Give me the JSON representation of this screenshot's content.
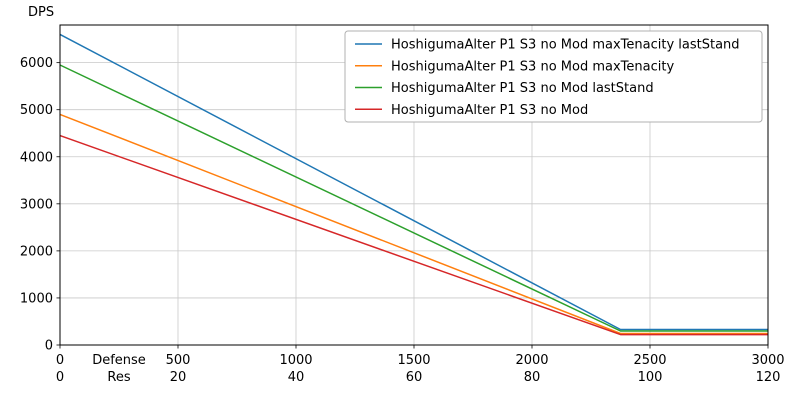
{
  "figure": {
    "background": "#ffffff"
  },
  "chart_data": {
    "type": "line",
    "title": "",
    "ylabel": "DPS",
    "grid": true,
    "legend_position": "upper right",
    "xlim": [
      0,
      3000
    ],
    "ylim": [
      0,
      6800
    ],
    "x_axis": {
      "tick_positions": [
        0,
        500,
        1000,
        1500,
        2000,
        2500,
        3000
      ],
      "rows": [
        {
          "label": "Defense",
          "values": [
            "0",
            "500",
            "1000",
            "1500",
            "2000",
            "2500",
            "3000"
          ]
        },
        {
          "label": "Res",
          "values": [
            "0",
            "20",
            "40",
            "60",
            "80",
            "100",
            "120"
          ]
        }
      ]
    },
    "y_axis": {
      "label": "DPS",
      "ticks": [
        0,
        1000,
        2000,
        3000,
        4000,
        5000,
        6000
      ]
    },
    "series": [
      {
        "name": "HoshigumaAlter P1 S3 no Mod maxTenacity lastStand",
        "color": "#1f77b4",
        "x": [
          0,
          2375,
          3000
        ],
        "y": [
          6600,
          330,
          330
        ]
      },
      {
        "name": "HoshigumaAlter P1 S3 no Mod maxTenacity",
        "color": "#ff7f0e",
        "x": [
          0,
          2375,
          3000
        ],
        "y": [
          4900,
          245,
          245
        ]
      },
      {
        "name": "HoshigumaAlter P1 S3 no Mod lastStand",
        "color": "#2ca02c",
        "x": [
          0,
          2375,
          3000
        ],
        "y": [
          5950,
          297,
          297
        ]
      },
      {
        "name": "HoshigumaAlter P1 S3 no Mod",
        "color": "#d62728",
        "x": [
          0,
          2375,
          3000
        ],
        "y": [
          4450,
          222,
          222
        ]
      }
    ],
    "colors": {
      "grid": "#c9c9c9",
      "axis": "#000000",
      "legend_border": "#b0b0b0",
      "legend_bg": "#ffffff"
    }
  }
}
